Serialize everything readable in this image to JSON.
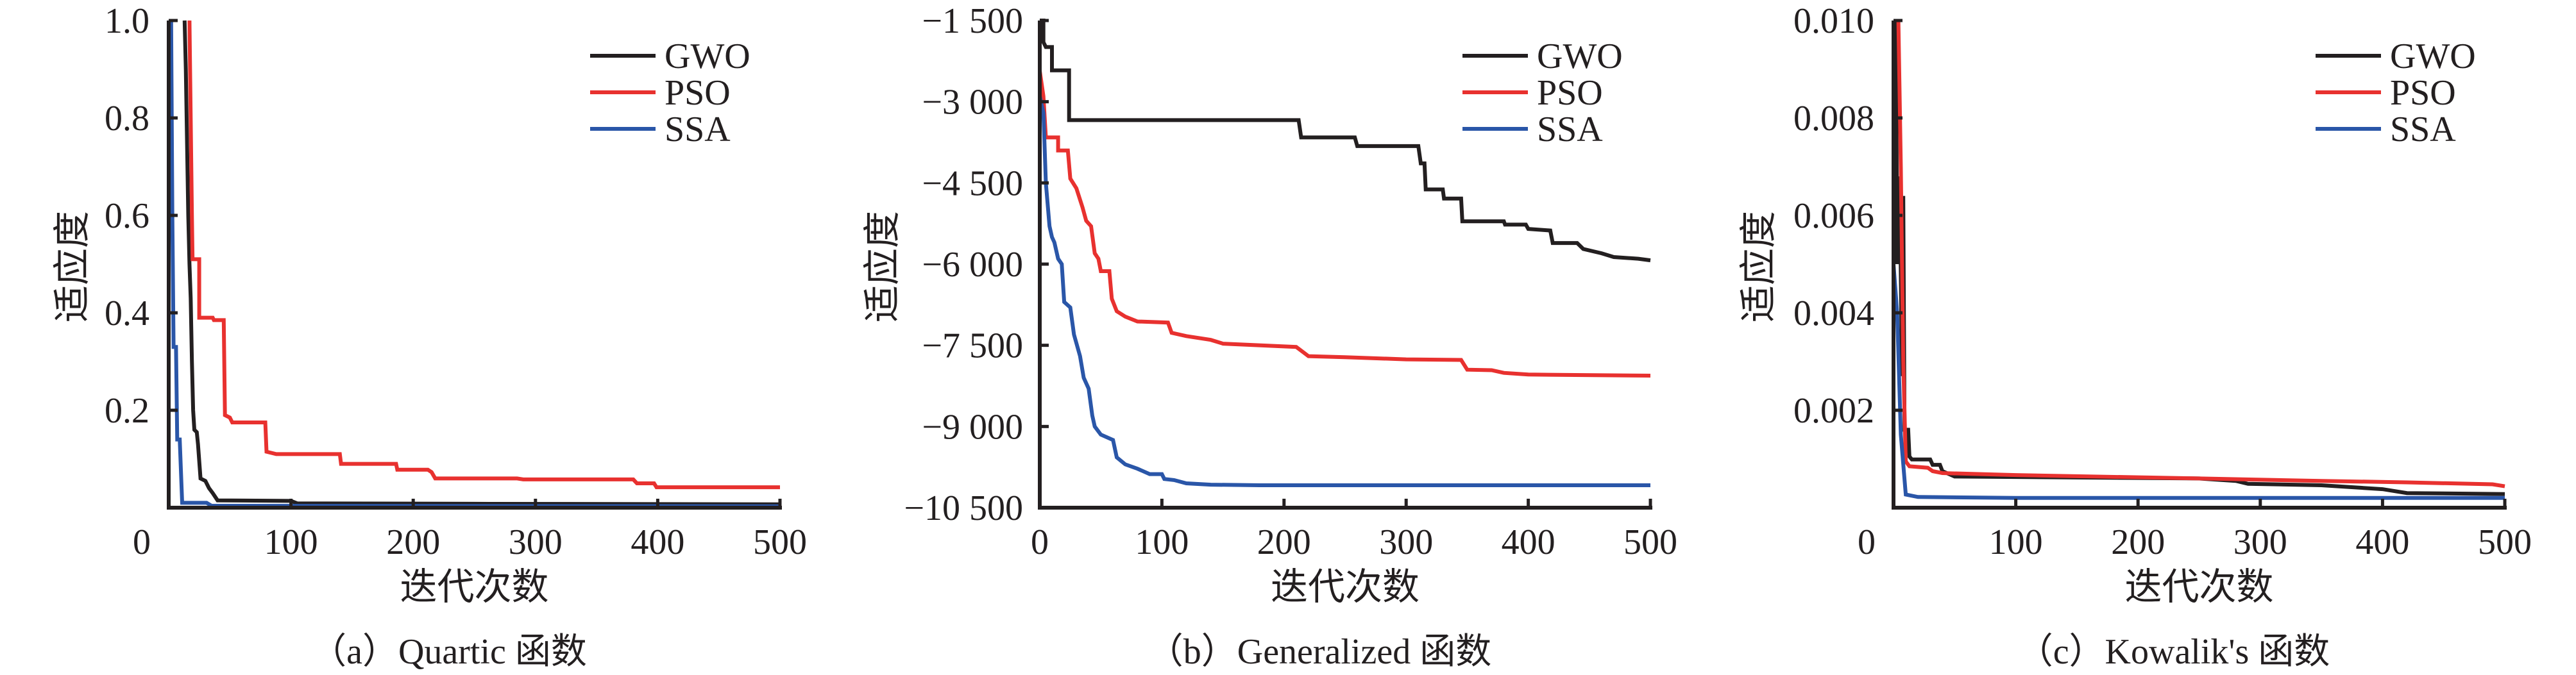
{
  "colors": {
    "GWO": "#231f20",
    "PSO": "#e8312f",
    "SSA": "#2a56a8",
    "axis": "#231f20"
  },
  "chart_data": [
    {
      "type": "line",
      "caption": "（a）Quartic 函数",
      "xlabel": "迭代次数",
      "ylabel": "适应度",
      "xlim": [
        0,
        500
      ],
      "ylim": [
        0,
        1.0
      ],
      "xticks": [
        0,
        100,
        200,
        300,
        400,
        500
      ],
      "xtick_labels": [
        "0",
        "100",
        "200",
        "300",
        "400",
        "500"
      ],
      "yticks": [
        0.2,
        0.4,
        0.6,
        0.8,
        1.0
      ],
      "ytick_labels": [
        "0.2",
        "0.4",
        "0.6",
        "0.8",
        "1.0"
      ],
      "legend": [
        "GWO",
        "PSO",
        "SSA"
      ],
      "legend_position": "top-right",
      "series": [
        {
          "name": "GWO",
          "points": [
            [
              13,
              1.0
            ],
            [
              14,
              0.9
            ],
            [
              16,
              0.6
            ],
            [
              17,
              0.5
            ],
            [
              18,
              0.43
            ],
            [
              19,
              0.3
            ],
            [
              20,
              0.2
            ],
            [
              21,
              0.16
            ],
            [
              23,
              0.155
            ],
            [
              24,
              0.13
            ],
            [
              26,
              0.06
            ],
            [
              30,
              0.055
            ],
            [
              33,
              0.04
            ],
            [
              36,
              0.03
            ],
            [
              40,
              0.015
            ],
            [
              100,
              0.014
            ],
            [
              105,
              0.009
            ],
            [
              250,
              0.008
            ],
            [
              500,
              0.007
            ]
          ]
        },
        {
          "name": "PSO",
          "points": [
            [
              17,
              1.0
            ],
            [
              18,
              0.8
            ],
            [
              19,
              0.6
            ],
            [
              19.5,
              0.51
            ],
            [
              25,
              0.51
            ],
            [
              25,
              0.39
            ],
            [
              36,
              0.39
            ],
            [
              37,
              0.385
            ],
            [
              45,
              0.385
            ],
            [
              46,
              0.19
            ],
            [
              50,
              0.185
            ],
            [
              52,
              0.175
            ],
            [
              79,
              0.175
            ],
            [
              80,
              0.115
            ],
            [
              88,
              0.11
            ],
            [
              140,
              0.11
            ],
            [
              141,
              0.09
            ],
            [
              186,
              0.09
            ],
            [
              187,
              0.078
            ],
            [
              212,
              0.078
            ],
            [
              215,
              0.073
            ],
            [
              218,
              0.06
            ],
            [
              285,
              0.06
            ],
            [
              290,
              0.058
            ],
            [
              380,
              0.058
            ],
            [
              383,
              0.05
            ],
            [
              397,
              0.05
            ],
            [
              399,
              0.042
            ],
            [
              500,
              0.042
            ]
          ]
        },
        {
          "name": "SSA",
          "points": [
            [
              2,
              1.0
            ],
            [
              3,
              0.6
            ],
            [
              4,
              0.33
            ],
            [
              6,
              0.33
            ],
            [
              7,
              0.14
            ],
            [
              9,
              0.14
            ],
            [
              11,
              0.01
            ],
            [
              31,
              0.01
            ],
            [
              35,
              0.004
            ],
            [
              500,
              0.003
            ]
          ]
        }
      ]
    },
    {
      "type": "line",
      "caption": "（b）Generalized 函数",
      "xlabel": "迭代次数",
      "ylabel": "适应度",
      "xlim": [
        0,
        500
      ],
      "ylim": [
        -10500,
        -1500
      ],
      "xticks": [
        0,
        100,
        200,
        300,
        400,
        500
      ],
      "xtick_labels": [
        "0",
        "100",
        "200",
        "300",
        "400",
        "500"
      ],
      "yticks": [
        -10500,
        -9000,
        -7500,
        -6000,
        -4500,
        -3000,
        -1500
      ],
      "ytick_labels": [
        "−10 500",
        "−9 000",
        "−7 500",
        "−6 000",
        "−4 500",
        "−3 000",
        "−1 500"
      ],
      "legend": [
        "GWO",
        "PSO",
        "SSA"
      ],
      "legend_position": "top-right",
      "series": [
        {
          "name": "GWO",
          "points": [
            [
              0,
              -1500
            ],
            [
              3,
              -1500
            ],
            [
              3,
              -1900
            ],
            [
              5,
              -1990
            ],
            [
              10,
              -1990
            ],
            [
              10,
              -2420
            ],
            [
              24,
              -2420
            ],
            [
              24,
              -3340
            ],
            [
              212,
              -3340
            ],
            [
              214,
              -3660
            ],
            [
              258,
              -3660
            ],
            [
              260,
              -3820
            ],
            [
              310,
              -3820
            ],
            [
              312,
              -4140
            ],
            [
              315,
              -4140
            ],
            [
              316,
              -4620
            ],
            [
              330,
              -4620
            ],
            [
              331,
              -4790
            ],
            [
              345,
              -4790
            ],
            [
              346,
              -5210
            ],
            [
              380,
              -5210
            ],
            [
              381,
              -5270
            ],
            [
              398,
              -5270
            ],
            [
              400,
              -5350
            ],
            [
              418,
              -5380
            ],
            [
              420,
              -5610
            ],
            [
              440,
              -5610
            ],
            [
              445,
              -5720
            ],
            [
              460,
              -5800
            ],
            [
              470,
              -5870
            ],
            [
              490,
              -5900
            ],
            [
              500,
              -5930
            ]
          ]
        },
        {
          "name": "PSO",
          "points": [
            [
              0,
              -2430
            ],
            [
              3,
              -2900
            ],
            [
              5,
              -3660
            ],
            [
              15,
              -3660
            ],
            [
              15,
              -3900
            ],
            [
              23,
              -3900
            ],
            [
              25,
              -4420
            ],
            [
              30,
              -4600
            ],
            [
              35,
              -4950
            ],
            [
              38,
              -5200
            ],
            [
              42,
              -5300
            ],
            [
              45,
              -5800
            ],
            [
              48,
              -5900
            ],
            [
              50,
              -6130
            ],
            [
              57,
              -6130
            ],
            [
              59,
              -6640
            ],
            [
              63,
              -6870
            ],
            [
              70,
              -6970
            ],
            [
              80,
              -7060
            ],
            [
              105,
              -7080
            ],
            [
              108,
              -7270
            ],
            [
              120,
              -7330
            ],
            [
              140,
              -7400
            ],
            [
              150,
              -7470
            ],
            [
              210,
              -7530
            ],
            [
              220,
              -7700
            ],
            [
              250,
              -7720
            ],
            [
              300,
              -7760
            ],
            [
              345,
              -7770
            ],
            [
              350,
              -7950
            ],
            [
              370,
              -7960
            ],
            [
              380,
              -8010
            ],
            [
              400,
              -8040
            ],
            [
              500,
              -8060
            ]
          ]
        },
        {
          "name": "SSA",
          "points": [
            [
              0,
              -2900
            ],
            [
              3,
              -3200
            ],
            [
              5,
              -4500
            ],
            [
              8,
              -5300
            ],
            [
              10,
              -5500
            ],
            [
              12,
              -5600
            ],
            [
              15,
              -5900
            ],
            [
              18,
              -6000
            ],
            [
              20,
              -6700
            ],
            [
              25,
              -6800
            ],
            [
              28,
              -7300
            ],
            [
              33,
              -7700
            ],
            [
              36,
              -8100
            ],
            [
              40,
              -8300
            ],
            [
              43,
              -8800
            ],
            [
              45,
              -9000
            ],
            [
              50,
              -9150
            ],
            [
              60,
              -9250
            ],
            [
              63,
              -9570
            ],
            [
              70,
              -9700
            ],
            [
              80,
              -9780
            ],
            [
              90,
              -9880
            ],
            [
              100,
              -9880
            ],
            [
              102,
              -9970
            ],
            [
              110,
              -9990
            ],
            [
              120,
              -10050
            ],
            [
              140,
              -10075
            ],
            [
              180,
              -10085
            ],
            [
              500,
              -10085
            ]
          ]
        }
      ]
    },
    {
      "type": "line",
      "caption": "（c）Kowalik's 函数",
      "xlabel": "迭代次数",
      "ylabel": "适应度",
      "xlim": [
        0,
        500
      ],
      "ylim": [
        0,
        0.01
      ],
      "xticks": [
        0,
        100,
        200,
        300,
        400,
        500
      ],
      "xtick_labels": [
        "0",
        "100",
        "200",
        "300",
        "400",
        "500"
      ],
      "yticks": [
        0.002,
        0.004,
        0.006,
        0.008,
        0.01
      ],
      "ytick_labels": [
        "0.002",
        "0.004",
        "0.006",
        "0.008",
        "0.010"
      ],
      "legend": [
        "GWO",
        "PSO",
        "SSA"
      ],
      "legend_position": "top-right",
      "series": [
        {
          "name": "GWO",
          "points": [
            [
              2,
              0.01
            ],
            [
              3,
              0.005
            ],
            [
              5,
              0.0068
            ],
            [
              7,
              0.0027
            ],
            [
              8,
              0.0064
            ],
            [
              9,
              0.0016
            ],
            [
              12,
              0.0016
            ],
            [
              13,
              0.00105
            ],
            [
              15,
              0.00099
            ],
            [
              30,
              0.00099
            ],
            [
              32,
              0.00088
            ],
            [
              38,
              0.00088
            ],
            [
              40,
              0.00075
            ],
            [
              50,
              0.00064
            ],
            [
              150,
              0.00062
            ],
            [
              250,
              0.0006
            ],
            [
              280,
              0.00055
            ],
            [
              290,
              0.00049
            ],
            [
              350,
              0.00046
            ],
            [
              400,
              0.00038
            ],
            [
              420,
              0.0003
            ],
            [
              500,
              0.00028
            ]
          ]
        },
        {
          "name": "PSO",
          "points": [
            [
              4,
              0.01
            ],
            [
              6,
              0.007
            ],
            [
              8,
              0.003
            ],
            [
              10,
              0.00095
            ],
            [
              13,
              0.00085
            ],
            [
              28,
              0.00082
            ],
            [
              32,
              0.00075
            ],
            [
              40,
              0.00071
            ],
            [
              100,
              0.00067
            ],
            [
              250,
              0.0006
            ],
            [
              350,
              0.00055
            ],
            [
              420,
              0.00052
            ],
            [
              490,
              0.00048
            ],
            [
              500,
              0.00044
            ]
          ]
        },
        {
          "name": "SSA",
          "points": [
            [
              0,
              0.005
            ],
            [
              3,
              0.004
            ],
            [
              6,
              0.0015
            ],
            [
              10,
              0.00027
            ],
            [
              20,
              0.00022
            ],
            [
              100,
              0.0002
            ],
            [
              500,
              0.0002
            ]
          ]
        }
      ]
    }
  ]
}
